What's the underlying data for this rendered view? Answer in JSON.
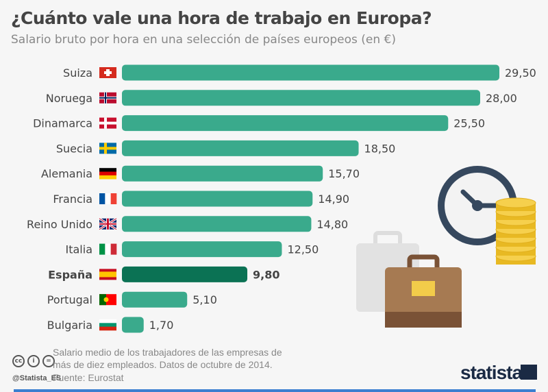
{
  "title": "¿Cuánto vale una hora de trabajo en Europa?",
  "subtitle": "Salario bruto por hora en una selección de países europeos (en €)",
  "chart_data": {
    "type": "bar",
    "orientation": "horizontal",
    "categories": [
      "Suiza",
      "Noruega",
      "Dinamarca",
      "Suecia",
      "Alemania",
      "Francia",
      "Reino Unido",
      "Italia",
      "España",
      "Portugal",
      "Bulgaria"
    ],
    "values": [
      29.5,
      28.0,
      25.5,
      18.5,
      15.7,
      14.9,
      14.8,
      12.5,
      9.8,
      5.1,
      1.7
    ],
    "value_labels": [
      "29,50",
      "28,00",
      "25,50",
      "18,50",
      "15,70",
      "14,90",
      "14,80",
      "12,50",
      "9,80",
      "5,10",
      "1,70"
    ],
    "highlight": "España",
    "colors": {
      "bar": "#3aaa8c",
      "highlight": "#0b7254"
    },
    "grid": false
  },
  "footer": {
    "note": "Salario medio de los trabajadores de las empresas de más de diez empleados. Datos de octubre de 2014.",
    "source": "Fuente: Eurostat",
    "handle": "@Statista_ES",
    "cc": [
      "cc",
      "i",
      "="
    ],
    "logo": "statista"
  }
}
